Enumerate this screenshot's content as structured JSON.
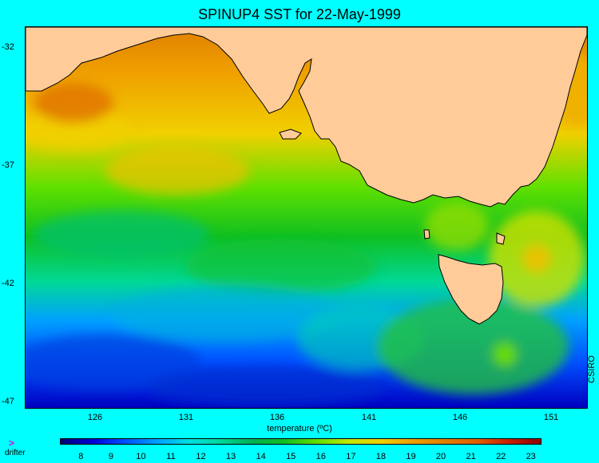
{
  "title": "SPINUP4 SST for 22-May-1999",
  "y_ticks": [
    "-32",
    "-37",
    "-42",
    "-47"
  ],
  "x_ticks": [
    "126",
    "131",
    "136",
    "141",
    "146",
    "151"
  ],
  "colorbar": {
    "title": "temperature (ºC)",
    "labels": [
      "8",
      "9",
      "10",
      "11",
      "12",
      "13",
      "14",
      "15",
      "16",
      "17",
      "18",
      "19",
      "20",
      "21",
      "22",
      "23"
    ],
    "range": [
      7.3,
      23.3
    ],
    "colors": [
      "#00007a",
      "#0000d8",
      "#0050ff",
      "#00a0ff",
      "#00e0e0",
      "#00d898",
      "#00b050",
      "#10c020",
      "#60e000",
      "#c0e800",
      "#f0d000",
      "#f0a000",
      "#e08000",
      "#e06000",
      "#c82000",
      "#8a0000"
    ]
  },
  "legend": {
    "drifter_label": "drifter",
    "drifter_marker": ">"
  },
  "credit": "CSIRO",
  "colors": {
    "background": "#00ffff",
    "land": "#ffcc99",
    "coast": "#000000"
  }
}
